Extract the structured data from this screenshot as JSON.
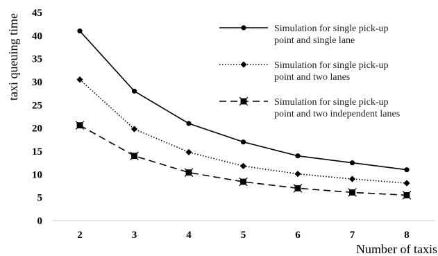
{
  "chart_data": {
    "type": "line",
    "xlabel": "Number of taxis",
    "ylabel": "taxi queuing time",
    "x": [
      2,
      3,
      4,
      5,
      6,
      7,
      8
    ],
    "ylim": [
      0,
      45
    ],
    "yticks": [
      0,
      5,
      10,
      15,
      20,
      25,
      30,
      35,
      40,
      45
    ],
    "grid": false,
    "legend_position": "top-right",
    "series": [
      {
        "name_lines": [
          "Simulation for single pick-up",
          "point and single lane"
        ],
        "values": [
          41.0,
          28.0,
          21.0,
          17.0,
          14.0,
          12.5,
          11.0
        ],
        "line_style": "solid",
        "marker": "circle",
        "color": "#000000"
      },
      {
        "name_lines": [
          "Simulation for single pick-up",
          "point and two lanes"
        ],
        "values": [
          30.5,
          19.8,
          14.8,
          11.8,
          10.1,
          9.0,
          8.1
        ],
        "line_style": "dotted",
        "marker": "diamond",
        "color": "#000000"
      },
      {
        "name_lines": [
          "Simulation for single pick-up",
          "point and two independent lanes"
        ],
        "values": [
          20.6,
          14.0,
          10.4,
          8.4,
          7.0,
          6.1,
          5.5
        ],
        "line_style": "dashed",
        "marker": "square",
        "color": "#000000"
      }
    ]
  }
}
